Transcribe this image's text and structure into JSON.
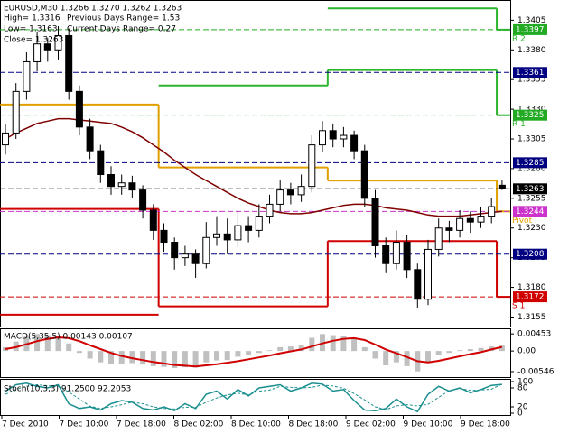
{
  "chart_data": {
    "type": "candlestick",
    "header": {
      "symbol_line": "EURUSD,M30  1.3266 1.3270 1.3262 1.3263",
      "high": "High= 1.3316",
      "prev_range": "Previous Days Range= 1.53",
      "low": "Low= 1.3163",
      "cur_range": "Current Days Range= 0.27",
      "close": "Close= 1.3263"
    },
    "x_labels": [
      "7 Dec 2010",
      "7 Dec 10:00",
      "7 Dec 18:00",
      "8 Dec 02:00",
      "8 Dec 10:00",
      "8 Dec 18:00",
      "9 Dec 02:00",
      "9 Dec 10:00",
      "9 Dec 18:00"
    ],
    "open": [
      1.33,
      1.331,
      1.3345,
      1.337,
      1.3385,
      1.338,
      1.3392,
      1.3345,
      1.3315,
      1.3295,
      1.3275,
      1.3265,
      1.3268,
      1.3262,
      1.3245,
      1.3228,
      1.3218,
      1.3205,
      1.3208,
      1.32,
      1.3222,
      1.3225,
      1.322,
      1.3232,
      1.3228,
      1.324,
      1.325,
      1.3262,
      1.3258,
      1.3265,
      1.33,
      1.3312,
      1.3305,
      1.3308,
      1.3295,
      1.3255,
      1.3215,
      1.32,
      1.3218,
      1.3195,
      1.317,
      1.3212,
      1.323,
      1.3228,
      1.3238,
      1.3235,
      1.324,
      1.3266
    ],
    "high": [
      1.3318,
      1.3352,
      1.3378,
      1.3395,
      1.339,
      1.34,
      1.3398,
      1.335,
      1.3322,
      1.33,
      1.3282,
      1.3275,
      1.3274,
      1.3266,
      1.325,
      1.3234,
      1.3222,
      1.3215,
      1.3212,
      1.3235,
      1.324,
      1.3238,
      1.3245,
      1.324,
      1.325,
      1.3258,
      1.327,
      1.3268,
      1.3275,
      1.3308,
      1.332,
      1.3318,
      1.3315,
      1.3312,
      1.33,
      1.3262,
      1.3222,
      1.3228,
      1.3224,
      1.32,
      1.322,
      1.3238,
      1.3236,
      1.3245,
      1.3244,
      1.3248,
      1.3255,
      1.327
    ],
    "low": [
      1.3292,
      1.3305,
      1.3338,
      1.3362,
      1.337,
      1.3372,
      1.3338,
      1.3308,
      1.3288,
      1.3268,
      1.3258,
      1.3258,
      1.3255,
      1.3238,
      1.322,
      1.321,
      1.3195,
      1.3198,
      1.3188,
      1.3196,
      1.3215,
      1.3208,
      1.3214,
      1.3218,
      1.3222,
      1.3234,
      1.3244,
      1.325,
      1.3252,
      1.326,
      1.3294,
      1.3298,
      1.3298,
      1.3288,
      1.3248,
      1.3205,
      1.3192,
      1.3195,
      1.3188,
      1.3163,
      1.3165,
      1.3206,
      1.3218,
      1.3222,
      1.3226,
      1.323,
      1.3234,
      1.3262
    ],
    "close": [
      1.331,
      1.3345,
      1.337,
      1.3385,
      1.338,
      1.3392,
      1.3345,
      1.3315,
      1.3295,
      1.3275,
      1.3265,
      1.3268,
      1.3262,
      1.3245,
      1.3228,
      1.3218,
      1.3205,
      1.3208,
      1.32,
      1.3222,
      1.3225,
      1.322,
      1.3232,
      1.3228,
      1.324,
      1.325,
      1.3262,
      1.3258,
      1.3265,
      1.33,
      1.3312,
      1.3305,
      1.3308,
      1.3295,
      1.3255,
      1.3215,
      1.32,
      1.3218,
      1.3195,
      1.317,
      1.3212,
      1.323,
      1.3228,
      1.3238,
      1.3235,
      1.324,
      1.3248,
      1.3263
    ],
    "ma": {
      "color": "#800000",
      "values": [
        1.3305,
        1.331,
        1.3314,
        1.3318,
        1.332,
        1.3322,
        1.3322,
        1.3321,
        1.332,
        1.3319,
        1.3318,
        1.3315,
        1.3311,
        1.3306,
        1.33,
        1.3294,
        1.3287,
        1.3281,
        1.3275,
        1.327,
        1.3265,
        1.326,
        1.3255,
        1.3251,
        1.3248,
        1.3245,
        1.3243,
        1.3242,
        1.3242,
        1.3243,
        1.3245,
        1.3247,
        1.3249,
        1.325,
        1.325,
        1.3249,
        1.3247,
        1.3246,
        1.3245,
        1.3243,
        1.3241,
        1.324,
        1.324,
        1.324,
        1.3241,
        1.3242,
        1.3243,
        1.3244
      ]
    },
    "period_starts": [
      0,
      15,
      31,
      47
    ],
    "levels": [
      {
        "name": "R 2",
        "color": "#2db52d",
        "values": [
          null,
          null,
          1.3415,
          1.3397
        ]
      },
      {
        "name": "R 1",
        "color": "#2db52d",
        "values": [
          null,
          1.335,
          1.3363,
          1.3325
        ]
      },
      {
        "name": "Pivot",
        "color": "#e0a000",
        "values": [
          1.3334,
          1.3281,
          1.327,
          1.3244
        ]
      },
      {
        "name": "S 1",
        "color": "#d00000",
        "values": [
          1.3246,
          1.3164,
          1.3219,
          1.3172
        ]
      },
      {
        "color": "#d00000",
        "values": [
          1.3157,
          null,
          null,
          null
        ]
      }
    ],
    "ylim": [
      1.3147,
      1.3422
    ],
    "yticks": [
      1.3405,
      {
        "value": 1.338,
        "label": "1.3380"
      },
      1.3355,
      {
        "value": 1.333,
        "label": "1.3330"
      },
      1.3305,
      {
        "value": 1.328,
        "label": "1.3280"
      },
      1.3255,
      {
        "value": 1.323,
        "label": "1.3230"
      },
      1.3205,
      {
        "value": 1.318,
        "label": "1.3180"
      },
      1.3155
    ],
    "price_tags": [
      {
        "value": 1.3397,
        "color": "#22aa22"
      },
      {
        "value": 1.3361,
        "color": "#000080"
      },
      {
        "value": 1.3325,
        "color": "#22aa22"
      },
      {
        "value": 1.3285,
        "color": "#000080"
      },
      {
        "value": 1.3263,
        "color": "#000000"
      },
      {
        "value": 1.3244,
        "color": "#cc33cc"
      },
      {
        "value": 1.3208,
        "color": "#000080"
      },
      {
        "value": 1.3172,
        "color": "#d00000"
      }
    ],
    "macd": {
      "title": "MACD(5,35,5) 0.00143 0.00107",
      "hist_color": "#c0c0c0",
      "signal_color": "#d00000",
      "histogram": [
        0.001,
        0.0025,
        0.0038,
        0.0045,
        0.0042,
        0.004,
        0.002,
        -0.0005,
        -0.002,
        -0.003,
        -0.0035,
        -0.0033,
        -0.0032,
        -0.0036,
        -0.004,
        -0.0042,
        -0.0045,
        -0.0043,
        -0.0044,
        -0.003,
        -0.0025,
        -0.0024,
        -0.0015,
        -0.0012,
        -0.0005,
        0.0002,
        0.001,
        0.0012,
        0.0015,
        0.0035,
        0.0045,
        0.0042,
        0.004,
        0.0035,
        0.001,
        -0.002,
        -0.0038,
        -0.003,
        -0.004,
        -0.0054,
        -0.003,
        -0.001,
        -0.0005,
        0.0002,
        0.0005,
        0.0008,
        0.0012,
        0.00143
      ],
      "signal": [
        0.0005,
        0.001,
        0.0018,
        0.0026,
        0.0032,
        0.0036,
        0.0034,
        0.0026,
        0.0015,
        0.0005,
        -0.0005,
        -0.0013,
        -0.0019,
        -0.0024,
        -0.0029,
        -0.0033,
        -0.0037,
        -0.0039,
        -0.0041,
        -0.0038,
        -0.0035,
        -0.0031,
        -0.0027,
        -0.0022,
        -0.0017,
        -0.0012,
        -0.0006,
        -0.0001,
        0.0004,
        0.0012,
        0.002,
        0.0027,
        0.0032,
        0.0034,
        0.0029,
        0.0017,
        0.0004,
        -0.0006,
        -0.0016,
        -0.0027,
        -0.003,
        -0.0026,
        -0.002,
        -0.0014,
        -0.0008,
        -0.0003,
        0.0004,
        0.00107
      ],
      "ylim": [
        -0.0069,
        0.006
      ],
      "yticks": [
        0.00453,
        {
          "value": 0,
          "label": "0.00"
        },
        -0.00546
      ]
    },
    "stoch": {
      "title": "Stoch(10,3,3) 91.2500 92.2053",
      "main_color": "#1a8f8f",
      "signal_color": "#1a8f8f",
      "main": [
        70,
        90,
        95,
        85,
        80,
        90,
        30,
        15,
        20,
        10,
        30,
        40,
        35,
        15,
        10,
        20,
        8,
        30,
        15,
        60,
        70,
        45,
        75,
        55,
        80,
        85,
        90,
        70,
        80,
        95,
        92,
        70,
        75,
        40,
        10,
        8,
        15,
        45,
        20,
        5,
        60,
        85,
        70,
        80,
        65,
        75,
        88,
        91.25
      ],
      "signal": [
        60,
        75,
        85,
        90,
        87,
        85,
        67,
        45,
        22,
        15,
        20,
        27,
        35,
        30,
        20,
        15,
        13,
        19,
        18,
        35,
        48,
        58,
        63,
        58,
        70,
        73,
        85,
        82,
        80,
        82,
        89,
        86,
        79,
        62,
        42,
        20,
        11,
        23,
        27,
        23,
        28,
        50,
        72,
        78,
        72,
        73,
        76,
        92.2053
      ],
      "ylim": [
        0,
        100
      ],
      "yticks": [
        100,
        80,
        20,
        0
      ]
    }
  }
}
